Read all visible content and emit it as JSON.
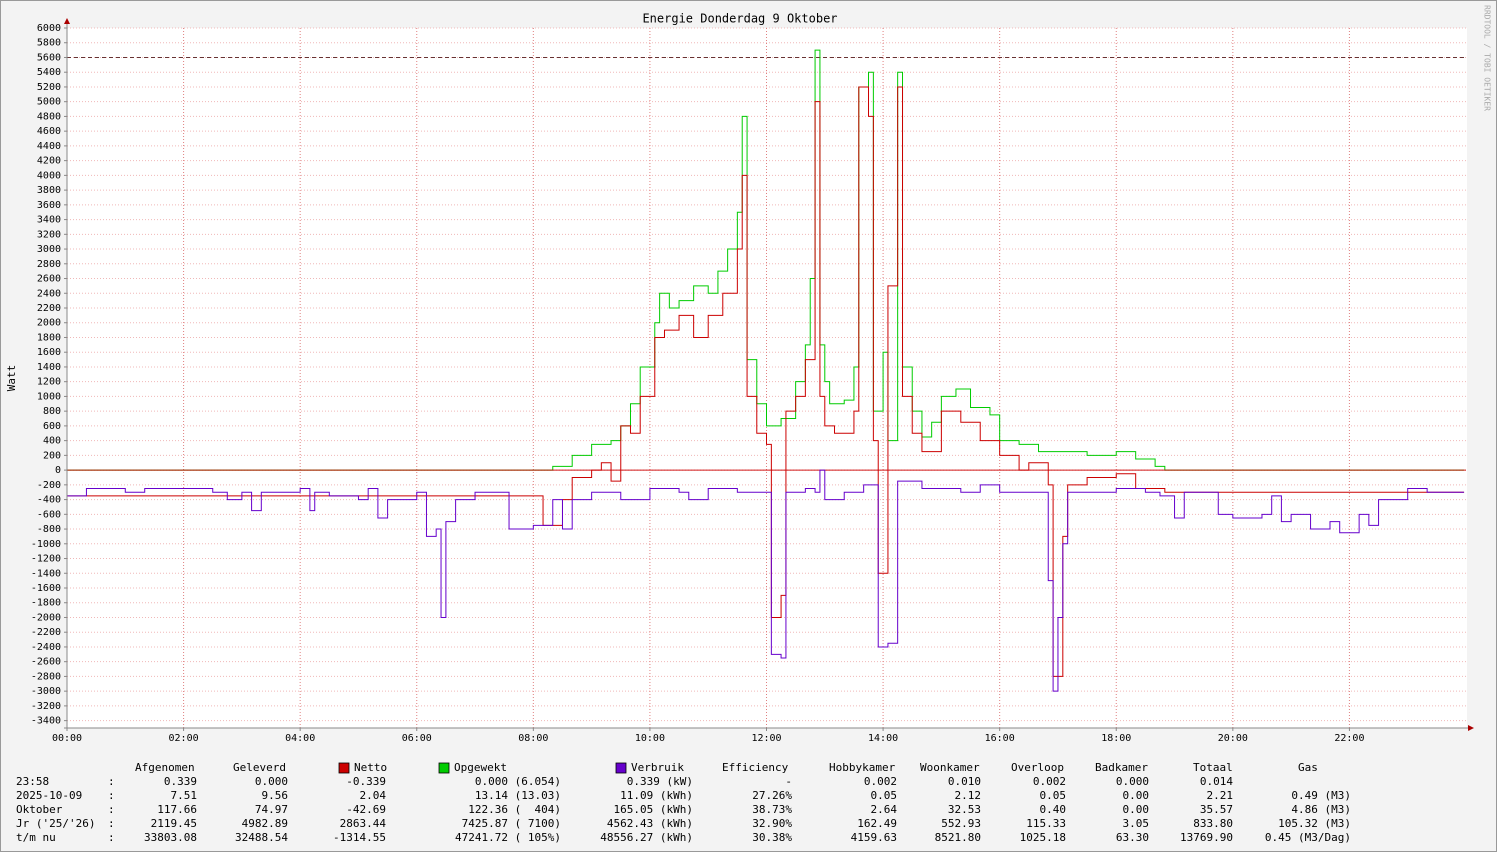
{
  "chart_data": {
    "type": "line",
    "title": "Energie Donderdag 9 Oktober",
    "y_label": "Watt",
    "watermark": "RRDTOOL / TOBI OETIKER",
    "xlim": [
      "00:00",
      "24:00"
    ],
    "xticks": [
      "00:00",
      "02:00",
      "04:00",
      "06:00",
      "08:00",
      "10:00",
      "12:00",
      "14:00",
      "16:00",
      "18:00",
      "20:00",
      "22:00"
    ],
    "ylim": [
      -3500,
      6000
    ],
    "yticks": [
      -3400,
      -3200,
      -3000,
      -2800,
      -2600,
      -2400,
      -2200,
      -2000,
      -1800,
      -1600,
      -1400,
      -1200,
      -1000,
      -800,
      -600,
      -400,
      -200,
      0,
      200,
      400,
      600,
      800,
      1000,
      1200,
      1400,
      1600,
      1800,
      2000,
      2200,
      2400,
      2600,
      2800,
      3000,
      3200,
      3400,
      3600,
      3800,
      4000,
      4200,
      4400,
      4600,
      4800,
      5000,
      5200,
      5400,
      5600,
      5800,
      6000
    ],
    "grid": true,
    "reference_line": 5600,
    "step": true,
    "series": [
      {
        "name": "Opgewekt",
        "color": "#00cc00",
        "x": [
          "00:00",
          "08:10",
          "08:20",
          "08:40",
          "09:00",
          "09:20",
          "09:30",
          "09:40",
          "09:50",
          "10:05",
          "10:10",
          "10:20",
          "10:30",
          "10:45",
          "11:00",
          "11:10",
          "11:20",
          "11:30",
          "11:35",
          "11:40",
          "11:50",
          "12:00",
          "12:15",
          "12:30",
          "12:40",
          "12:45",
          "12:50",
          "12:55",
          "13:00",
          "13:05",
          "13:20",
          "13:30",
          "13:35",
          "13:45",
          "13:50",
          "14:00",
          "14:05",
          "14:15",
          "14:20",
          "14:30",
          "14:40",
          "14:50",
          "15:00",
          "15:15",
          "15:30",
          "15:50",
          "16:00",
          "16:20",
          "16:40",
          "17:00",
          "17:30",
          "18:00",
          "18:20",
          "18:40",
          "18:50",
          "23:58"
        ],
        "values": [
          0,
          0,
          50,
          200,
          350,
          400,
          600,
          900,
          1400,
          2000,
          2400,
          2200,
          2300,
          2500,
          2400,
          2700,
          3000,
          3500,
          4800,
          1500,
          900,
          600,
          700,
          1200,
          1700,
          2600,
          5700,
          1700,
          1200,
          900,
          950,
          1400,
          5200,
          5400,
          800,
          1600,
          400,
          5400,
          1400,
          800,
          450,
          650,
          1000,
          1100,
          850,
          750,
          400,
          350,
          250,
          250,
          200,
          250,
          150,
          50,
          0,
          0
        ]
      },
      {
        "name": "Netto",
        "color": "#cc0000",
        "x": [
          "00:00",
          "08:10",
          "08:30",
          "08:40",
          "09:00",
          "09:10",
          "09:20",
          "09:30",
          "09:40",
          "09:50",
          "10:05",
          "10:15",
          "10:30",
          "10:45",
          "11:00",
          "11:15",
          "11:30",
          "11:35",
          "11:40",
          "11:50",
          "12:00",
          "12:05",
          "12:15",
          "12:20",
          "12:30",
          "12:40",
          "12:50",
          "12:55",
          "13:00",
          "13:10",
          "13:30",
          "13:35",
          "13:45",
          "13:50",
          "13:55",
          "14:05",
          "14:15",
          "14:20",
          "14:30",
          "14:40",
          "15:00",
          "15:20",
          "15:40",
          "16:00",
          "16:20",
          "16:30",
          "16:50",
          "16:55",
          "17:05",
          "17:10",
          "17:30",
          "18:00",
          "18:20",
          "18:50",
          "23:58"
        ],
        "values": [
          -350,
          -750,
          -400,
          -100,
          0,
          100,
          -150,
          600,
          500,
          1000,
          1800,
          1900,
          2100,
          1800,
          2100,
          2400,
          3000,
          4000,
          1000,
          500,
          350,
          -2000,
          -1700,
          800,
          1000,
          1500,
          5000,
          1000,
          600,
          500,
          800,
          5200,
          4800,
          400,
          -1400,
          2500,
          5200,
          1000,
          500,
          250,
          800,
          650,
          400,
          200,
          0,
          100,
          -200,
          -2800,
          -900,
          -200,
          -100,
          -50,
          -250,
          -300,
          -300
        ]
      },
      {
        "name": "Verbruik",
        "color": "#6600cc",
        "x": [
          "00:00",
          "00:20",
          "01:00",
          "01:20",
          "02:00",
          "02:30",
          "02:45",
          "03:00",
          "03:10",
          "03:20",
          "04:00",
          "04:10",
          "04:15",
          "04:30",
          "05:00",
          "05:10",
          "05:20",
          "05:30",
          "06:00",
          "06:10",
          "06:20",
          "06:25",
          "06:30",
          "06:40",
          "07:00",
          "07:30",
          "07:35",
          "08:00",
          "08:20",
          "08:30",
          "08:40",
          "09:00",
          "09:30",
          "10:00",
          "10:30",
          "10:40",
          "11:00",
          "11:30",
          "12:00",
          "12:05",
          "12:15",
          "12:20",
          "12:40",
          "12:50",
          "12:55",
          "13:00",
          "13:20",
          "13:40",
          "13:55",
          "14:05",
          "14:15",
          "14:40",
          "15:00",
          "15:20",
          "15:40",
          "16:00",
          "16:30",
          "16:50",
          "16:55",
          "17:00",
          "17:05",
          "17:10",
          "17:40",
          "18:00",
          "18:30",
          "18:45",
          "19:00",
          "19:10",
          "19:40",
          "19:45",
          "20:00",
          "20:30",
          "20:40",
          "20:50",
          "21:00",
          "21:20",
          "21:40",
          "21:50",
          "22:10",
          "22:20",
          "22:30",
          "23:00",
          "23:20",
          "23:58"
        ],
        "values": [
          -350,
          -250,
          -300,
          -250,
          -250,
          -300,
          -400,
          -300,
          -550,
          -300,
          -250,
          -550,
          -300,
          -350,
          -400,
          -250,
          -650,
          -400,
          -300,
          -900,
          -800,
          -2000,
          -700,
          -400,
          -300,
          -300,
          -800,
          -750,
          -400,
          -800,
          -400,
          -300,
          -400,
          -250,
          -300,
          -400,
          -250,
          -300,
          -300,
          -2500,
          -2550,
          -300,
          -250,
          -300,
          0,
          -400,
          -300,
          -200,
          -2400,
          -2350,
          -150,
          -250,
          -250,
          -300,
          -200,
          -300,
          -300,
          -1500,
          -3000,
          -2000,
          -1000,
          -300,
          -300,
          -250,
          -300,
          -350,
          -650,
          -300,
          -300,
          -600,
          -650,
          -600,
          -350,
          -700,
          -600,
          -800,
          -700,
          -850,
          -600,
          -750,
          -400,
          -250,
          -300,
          -300
        ]
      }
    ]
  },
  "table": {
    "headers": [
      "Afgenomen",
      "Geleverd",
      "Efficiency",
      "Hobbykamer",
      "Woonkamer",
      "Overloop",
      "Badkamer",
      "Totaal",
      "Gas"
    ],
    "separator": ":",
    "rows": [
      {
        "label": "23:58",
        "cells": [
          "0.339",
          "0.000",
          "-0.339",
          "0.000 (6.054)",
          "0.339 (kW)",
          "-",
          "0.002",
          "0.010",
          "0.002",
          "0.000",
          "0.014"
        ]
      },
      {
        "label": "2025-10-09",
        "cells": [
          "7.51",
          "9.56",
          "2.04",
          "13.14 (13.03)",
          "11.09 (kWh)",
          "27.26%",
          "0.05",
          "2.12",
          "0.05",
          "0.00",
          "2.21",
          "0.49 (M3)"
        ]
      },
      {
        "label": "Oktober",
        "cells": [
          "117.66",
          "74.97",
          "-42.69",
          "122.36 (  404)",
          "165.05 (kWh)",
          "38.73%",
          "2.64",
          "32.53",
          "0.40",
          "0.00",
          "35.57",
          "4.86 (M3)"
        ]
      },
      {
        "label": "Jr ('25/'26)",
        "cells": [
          "2119.45",
          "4982.89",
          "2863.44",
          "7425.87 ( 7100)",
          "4562.43 (kWh)",
          "32.90%",
          "162.49",
          "552.93",
          "115.33",
          "3.05",
          "833.80",
          "105.32 (M3)"
        ]
      },
      {
        "label": "t/m nu",
        "cells": [
          "33803.08",
          "32488.54",
          "-1314.55",
          "47241.72 ( 105%)",
          "48556.27 (kWh)",
          "30.38%",
          "4159.63",
          "8521.80",
          "1025.18",
          "63.30",
          "13769.90",
          "0.45 (M3/Dag)"
        ]
      }
    ]
  }
}
